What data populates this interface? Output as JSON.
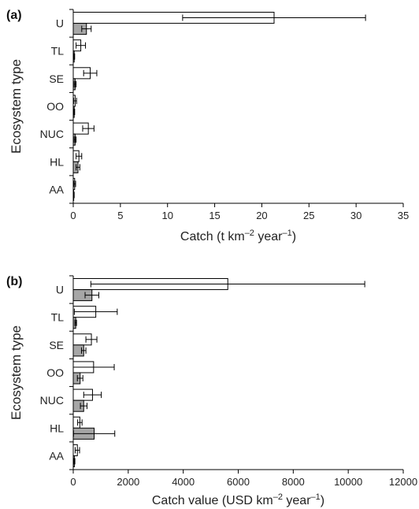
{
  "chart_data": [
    {
      "type": "bar",
      "orientation": "horizontal",
      "panel_label": "(a)",
      "categories": [
        "U",
        "TL",
        "SE",
        "OO",
        "NUC",
        "HL",
        "AA"
      ],
      "xlabel_prefix": "Catch (t km",
      "xlabel_sup1": "–2",
      "xlabel_mid": " year",
      "xlabel_sup2": "–1",
      "xlabel_suffix": ")",
      "ylabel": "Ecosystem type",
      "xlim": [
        0,
        35
      ],
      "xticks": [
        0,
        5,
        10,
        15,
        20,
        25,
        30,
        35
      ],
      "series": [
        {
          "fill": "#ffffff",
          "values": [
            21.3,
            0.8,
            1.8,
            0.2,
            1.6,
            0.6,
            0.15
          ],
          "errors": [
            9.7,
            0.5,
            0.7,
            0.15,
            0.6,
            0.3,
            0.1
          ]
        },
        {
          "fill": "#a6a6a6",
          "values": [
            1.4,
            0.1,
            0.2,
            0.1,
            0.2,
            0.5,
            0.05
          ],
          "errors": [
            0.5,
            0.05,
            0.1,
            0.05,
            0.1,
            0.2,
            0.05
          ]
        }
      ]
    },
    {
      "type": "bar",
      "orientation": "horizontal",
      "panel_label": "(b)",
      "categories": [
        "U",
        "TL",
        "SE",
        "OO",
        "NUC",
        "HL",
        "AA"
      ],
      "xlabel_prefix": "Catch value (USD km",
      "xlabel_sup1": "–2",
      "xlabel_mid": " year",
      "xlabel_sup2": "–1",
      "xlabel_suffix": ")",
      "ylabel": "Ecosystem type",
      "xlim": [
        0,
        12000
      ],
      "xticks": [
        0,
        2000,
        4000,
        6000,
        8000,
        10000,
        12000
      ],
      "series": [
        {
          "fill": "#ffffff",
          "values": [
            5620,
            820,
            660,
            740,
            700,
            240,
            150
          ],
          "errors": [
            4980,
            780,
            200,
            750,
            320,
            80,
            80
          ]
        },
        {
          "fill": "#a6a6a6",
          "values": [
            680,
            90,
            380,
            250,
            380,
            760,
            40
          ],
          "errors": [
            250,
            30,
            80,
            100,
            120,
            750,
            20
          ]
        }
      ]
    }
  ]
}
